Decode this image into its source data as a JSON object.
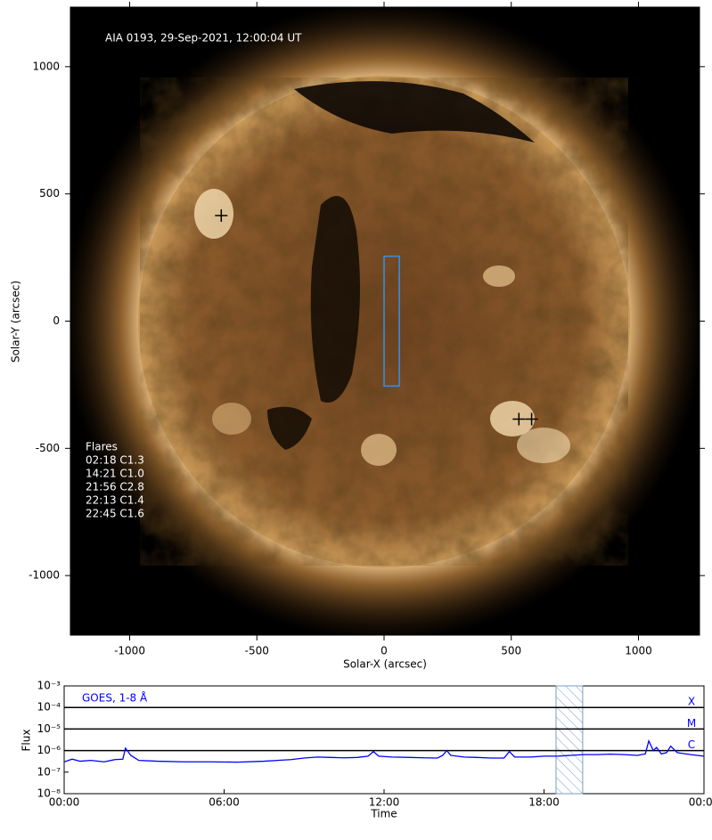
{
  "chart_data": [
    {
      "type": "image",
      "annotation": "AIA 0193, 29-Sep-2021, 12:00:04 UT",
      "xlabel": "Solar-X (arcsec)",
      "ylabel": "Solar-Y (arcsec)",
      "xlim": [
        -1233,
        1240
      ],
      "ylim": [
        -1234,
        1234
      ],
      "xticks": [
        -1000,
        -500,
        0,
        500,
        1000
      ],
      "yticks": [
        -1000,
        -500,
        0,
        500,
        1000
      ],
      "markers": {
        "x": [
          -640,
          530,
          580
        ],
        "y": [
          415,
          -385,
          -385
        ],
        "color": "#000000"
      },
      "box": {
        "x": [
          0,
          60
        ],
        "y": [
          -255,
          255
        ],
        "color": "#3a8ee6"
      },
      "flares_title": "Flares",
      "flares": [
        "02:18 C1.3",
        "14:21 C1.0",
        "21:56 C2.8",
        "22:13 C1.4",
        "22:45 C1.6"
      ]
    },
    {
      "type": "line",
      "yscale": "log",
      "xlabel": "Time",
      "ylabel": "Flux",
      "xlim": [
        0,
        24
      ],
      "xticks": [
        {
          "value": 0,
          "label": "00:00"
        },
        {
          "value": 6,
          "label": "06:00"
        },
        {
          "value": 12,
          "label": "12:00"
        },
        {
          "value": 18,
          "label": "18:00"
        },
        {
          "value": 24,
          "label": "00:00"
        }
      ],
      "ylim": [
        1e-08,
        0.001
      ],
      "yticks": [
        {
          "value": 0.001,
          "label": "10⁻³"
        },
        {
          "value": 0.0001,
          "label": "10⁻⁴"
        },
        {
          "value": 1e-05,
          "label": "10⁻⁵"
        },
        {
          "value": 1e-06,
          "label": "10⁻⁶"
        },
        {
          "value": 1e-07,
          "label": "10⁻⁷"
        },
        {
          "value": 1e-08,
          "label": "10⁻⁸"
        }
      ],
      "class_lines": [
        {
          "value": 0.0001,
          "label": "X"
        },
        {
          "value": 1e-05,
          "label": "M"
        },
        {
          "value": 1e-06,
          "label": "C"
        }
      ],
      "span": [
        18.45,
        19.45
      ],
      "series": [
        {
          "name": "GOES, 1-8 Å",
          "color": "#0000ff",
          "x": [
            0,
            0.3,
            0.6,
            1.0,
            1.5,
            1.9,
            2.2,
            2.3,
            2.5,
            2.8,
            3.5,
            4.5,
            5.5,
            6.5,
            7.5,
            8.0,
            8.5,
            9.0,
            9.5,
            10.0,
            10.5,
            11.0,
            11.4,
            11.6,
            11.8,
            12.3,
            13.0,
            13.5,
            14.0,
            14.2,
            14.35,
            14.5,
            15.0,
            15.5,
            16.0,
            16.5,
            16.7,
            16.9,
            17.5,
            18.0,
            18.5,
            19.0,
            19.5,
            20.0,
            20.5,
            21.0,
            21.5,
            21.8,
            21.93,
            22.1,
            22.22,
            22.4,
            22.6,
            22.75,
            23.0,
            23.5,
            24.0
          ],
          "values": [
            3e-07,
            4e-07,
            3.2e-07,
            3.5e-07,
            3e-07,
            3.8e-07,
            4e-07,
            1.3e-06,
            6e-07,
            3.5e-07,
            3.2e-07,
            3e-07,
            3e-07,
            2.9e-07,
            3.2e-07,
            3.5e-07,
            3.8e-07,
            4.5e-07,
            5e-07,
            4.8e-07,
            4.6e-07,
            4.8e-07,
            5.5e-07,
            9e-07,
            5.5e-07,
            5e-07,
            4.8e-07,
            4.6e-07,
            4.5e-07,
            6e-07,
            1e-06,
            6e-07,
            5e-07,
            4.8e-07,
            4.5e-07,
            4.5e-07,
            9e-07,
            5e-07,
            5e-07,
            5.5e-07,
            5.5e-07,
            6e-07,
            6.5e-07,
            6.5e-07,
            6.8e-07,
            6.5e-07,
            6e-07,
            7e-07,
            2.8e-06,
            1e-06,
            1.4e-06,
            7e-07,
            8e-07,
            1.6e-06,
            8e-07,
            6.5e-07,
            5.5e-07
          ]
        }
      ]
    }
  ]
}
